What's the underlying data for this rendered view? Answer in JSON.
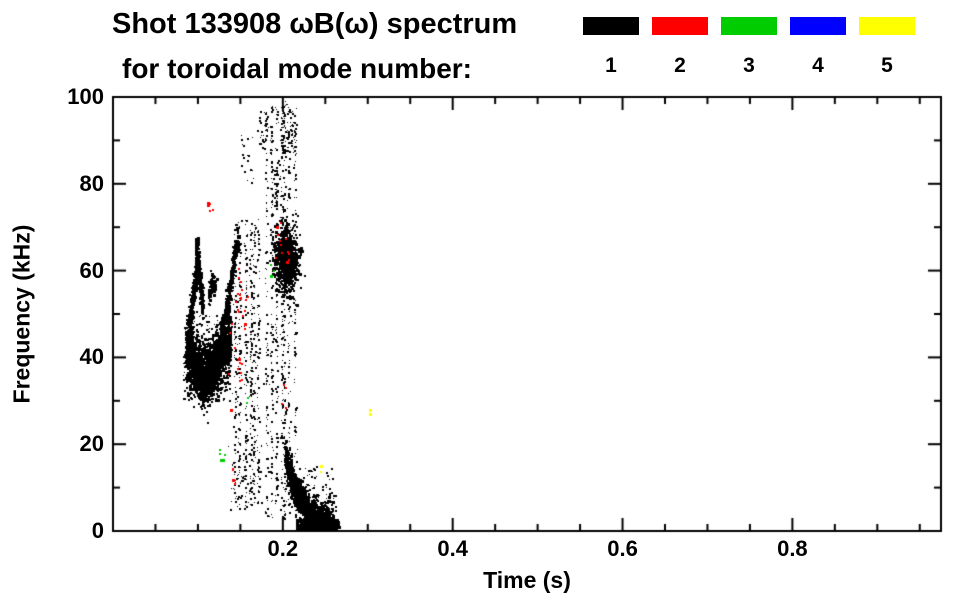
{
  "chart_data": {
    "type": "scatter",
    "title_line1": "Shot 133908 ωB(ω) spectrum",
    "title_line2": "for toroidal mode number:",
    "xlabel": "Time (s)",
    "ylabel": "Frequency (kHz)",
    "xlim": [
      0,
      0.975
    ],
    "ylim": [
      0,
      100
    ],
    "x_major_ticks": [
      0.2,
      0.4,
      0.6,
      0.8
    ],
    "x_tick_labels": [
      "0.2",
      "0.4",
      "0.6",
      "0.8"
    ],
    "x_minor_step": 0.05,
    "y_major_ticks": [
      0,
      20,
      40,
      60,
      80,
      100
    ],
    "y_tick_labels": [
      "0",
      "20",
      "40",
      "60",
      "80",
      "100"
    ],
    "y_minor_step": 10,
    "grid": false,
    "legend_position": "top-right",
    "modes": [
      {
        "mode": 1,
        "label": "1",
        "color": "#000000"
      },
      {
        "mode": 2,
        "label": "2",
        "color": "#ff0000"
      },
      {
        "mode": 3,
        "label": "3",
        "color": "#00cc00"
      },
      {
        "mode": 4,
        "label": "4",
        "color": "#0000ff"
      },
      {
        "mode": 5,
        "label": "5",
        "color": "#ffff00"
      }
    ],
    "seed": 42,
    "clusters": [
      {
        "mode": 1,
        "type": "band",
        "path": [
          [
            0.085,
            41
          ],
          [
            0.095,
            38.5
          ],
          [
            0.105,
            36
          ],
          [
            0.112,
            36.5
          ],
          [
            0.12,
            39
          ],
          [
            0.13,
            42
          ],
          [
            0.137,
            45
          ]
        ],
        "thickness": 8,
        "n": 2400,
        "size": 2
      },
      {
        "mode": 1,
        "type": "box",
        "t": [
          0.082,
          0.14
        ],
        "f": [
          30,
          50
        ],
        "n": 250,
        "size": 1
      },
      {
        "mode": 1,
        "type": "band",
        "path": [
          [
            0.088,
            46
          ],
          [
            0.092,
            52
          ],
          [
            0.096,
            58
          ],
          [
            0.099,
            62
          ],
          [
            0.102,
            57
          ],
          [
            0.105,
            51
          ]
        ],
        "thickness": 4,
        "n": 420,
        "size": 2
      },
      {
        "mode": 1,
        "type": "box",
        "t": [
          0.096,
          0.1
        ],
        "f": [
          62,
          68
        ],
        "n": 60,
        "size": 2
      },
      {
        "mode": 1,
        "type": "band",
        "path": [
          [
            0.112,
            54
          ],
          [
            0.116,
            58
          ],
          [
            0.12,
            56
          ]
        ],
        "thickness": 3,
        "n": 120,
        "size": 2
      },
      {
        "mode": 1,
        "type": "band",
        "path": [
          [
            0.128,
            46
          ],
          [
            0.133,
            52
          ],
          [
            0.138,
            58
          ],
          [
            0.142,
            64
          ],
          [
            0.146,
            67
          ]
        ],
        "thickness": 3.5,
        "n": 300,
        "size": 2
      },
      {
        "mode": 1,
        "type": "streaks",
        "t": [
          0.14,
          0.175
        ],
        "f": [
          6,
          72
        ],
        "k": 6,
        "n": 500,
        "size": 1
      },
      {
        "mode": 1,
        "type": "box",
        "t": [
          0.135,
          0.175
        ],
        "f": [
          5,
          20
        ],
        "n": 70,
        "size": 1
      },
      {
        "mode": 1,
        "type": "streaks",
        "t": [
          0.178,
          0.216
        ],
        "f": [
          3,
          98
        ],
        "k": 7,
        "n": 700,
        "size": 1
      },
      {
        "mode": 1,
        "type": "box",
        "t": [
          0.196,
          0.214
        ],
        "f": [
          86,
          100
        ],
        "n": 80,
        "size": 1
      },
      {
        "mode": 1,
        "type": "box",
        "t": [
          0.17,
          0.18
        ],
        "f": [
          88,
          97
        ],
        "n": 25,
        "size": 1
      },
      {
        "mode": 1,
        "type": "blob",
        "t": [
          0.19,
          0.216
        ],
        "f": [
          56,
          70
        ],
        "n": 1000,
        "size": 2
      },
      {
        "mode": 1,
        "type": "band",
        "path": [
          [
            0.202,
            17
          ],
          [
            0.208,
            13
          ],
          [
            0.214,
            9.5
          ],
          [
            0.222,
            6.5
          ],
          [
            0.232,
            4
          ],
          [
            0.244,
            2.5
          ],
          [
            0.258,
            1.5
          ]
        ],
        "thickness": 5,
        "n": 1400,
        "size": 2
      },
      {
        "mode": 1,
        "type": "box",
        "t": [
          0.215,
          0.265
        ],
        "f": [
          0,
          3
        ],
        "n": 450,
        "size": 2
      },
      {
        "mode": 1,
        "type": "box",
        "t": [
          0.218,
          0.262
        ],
        "f": [
          4,
          15
        ],
        "n": 80,
        "size": 1
      },
      {
        "mode": 1,
        "type": "box",
        "t": [
          0.15,
          0.165
        ],
        "f": [
          80,
          92
        ],
        "n": 18,
        "size": 1
      },
      {
        "mode": 1,
        "type": "box",
        "t": [
          0.185,
          0.196
        ],
        "f": [
          75,
          85
        ],
        "n": 20,
        "size": 1
      },
      {
        "mode": 2,
        "type": "box",
        "t": [
          0.108,
          0.117
        ],
        "f": [
          73,
          77
        ],
        "n": 6,
        "size": 2
      },
      {
        "mode": 2,
        "type": "box",
        "t": [
          0.135,
          0.152
        ],
        "f": [
          28,
          62
        ],
        "n": 22,
        "size": 2
      },
      {
        "mode": 2,
        "type": "box",
        "t": [
          0.15,
          0.158
        ],
        "f": [
          44,
          56
        ],
        "n": 8,
        "size": 2
      },
      {
        "mode": 2,
        "type": "box",
        "t": [
          0.19,
          0.206
        ],
        "f": [
          62,
          72
        ],
        "n": 12,
        "size": 2
      },
      {
        "mode": 2,
        "type": "box",
        "t": [
          0.136,
          0.142
        ],
        "f": [
          10,
          15
        ],
        "n": 4,
        "size": 2
      },
      {
        "mode": 2,
        "type": "box",
        "t": [
          0.198,
          0.204
        ],
        "f": [
          28,
          34
        ],
        "n": 4,
        "size": 2
      },
      {
        "mode": 3,
        "type": "box",
        "t": [
          0.124,
          0.133
        ],
        "f": [
          16,
          21
        ],
        "n": 5,
        "size": 2
      },
      {
        "mode": 3,
        "type": "box",
        "t": [
          0.184,
          0.19
        ],
        "f": [
          57,
          62
        ],
        "n": 3,
        "size": 2
      },
      {
        "mode": 3,
        "type": "box",
        "t": [
          0.152,
          0.158
        ],
        "f": [
          28,
          32
        ],
        "n": 2,
        "size": 2
      },
      {
        "mode": 5,
        "type": "box",
        "t": [
          0.298,
          0.308
        ],
        "f": [
          27,
          29
        ],
        "n": 2,
        "size": 2
      },
      {
        "mode": 5,
        "type": "box",
        "t": [
          0.243,
          0.25
        ],
        "f": [
          13,
          16
        ],
        "n": 2,
        "size": 2
      }
    ]
  }
}
